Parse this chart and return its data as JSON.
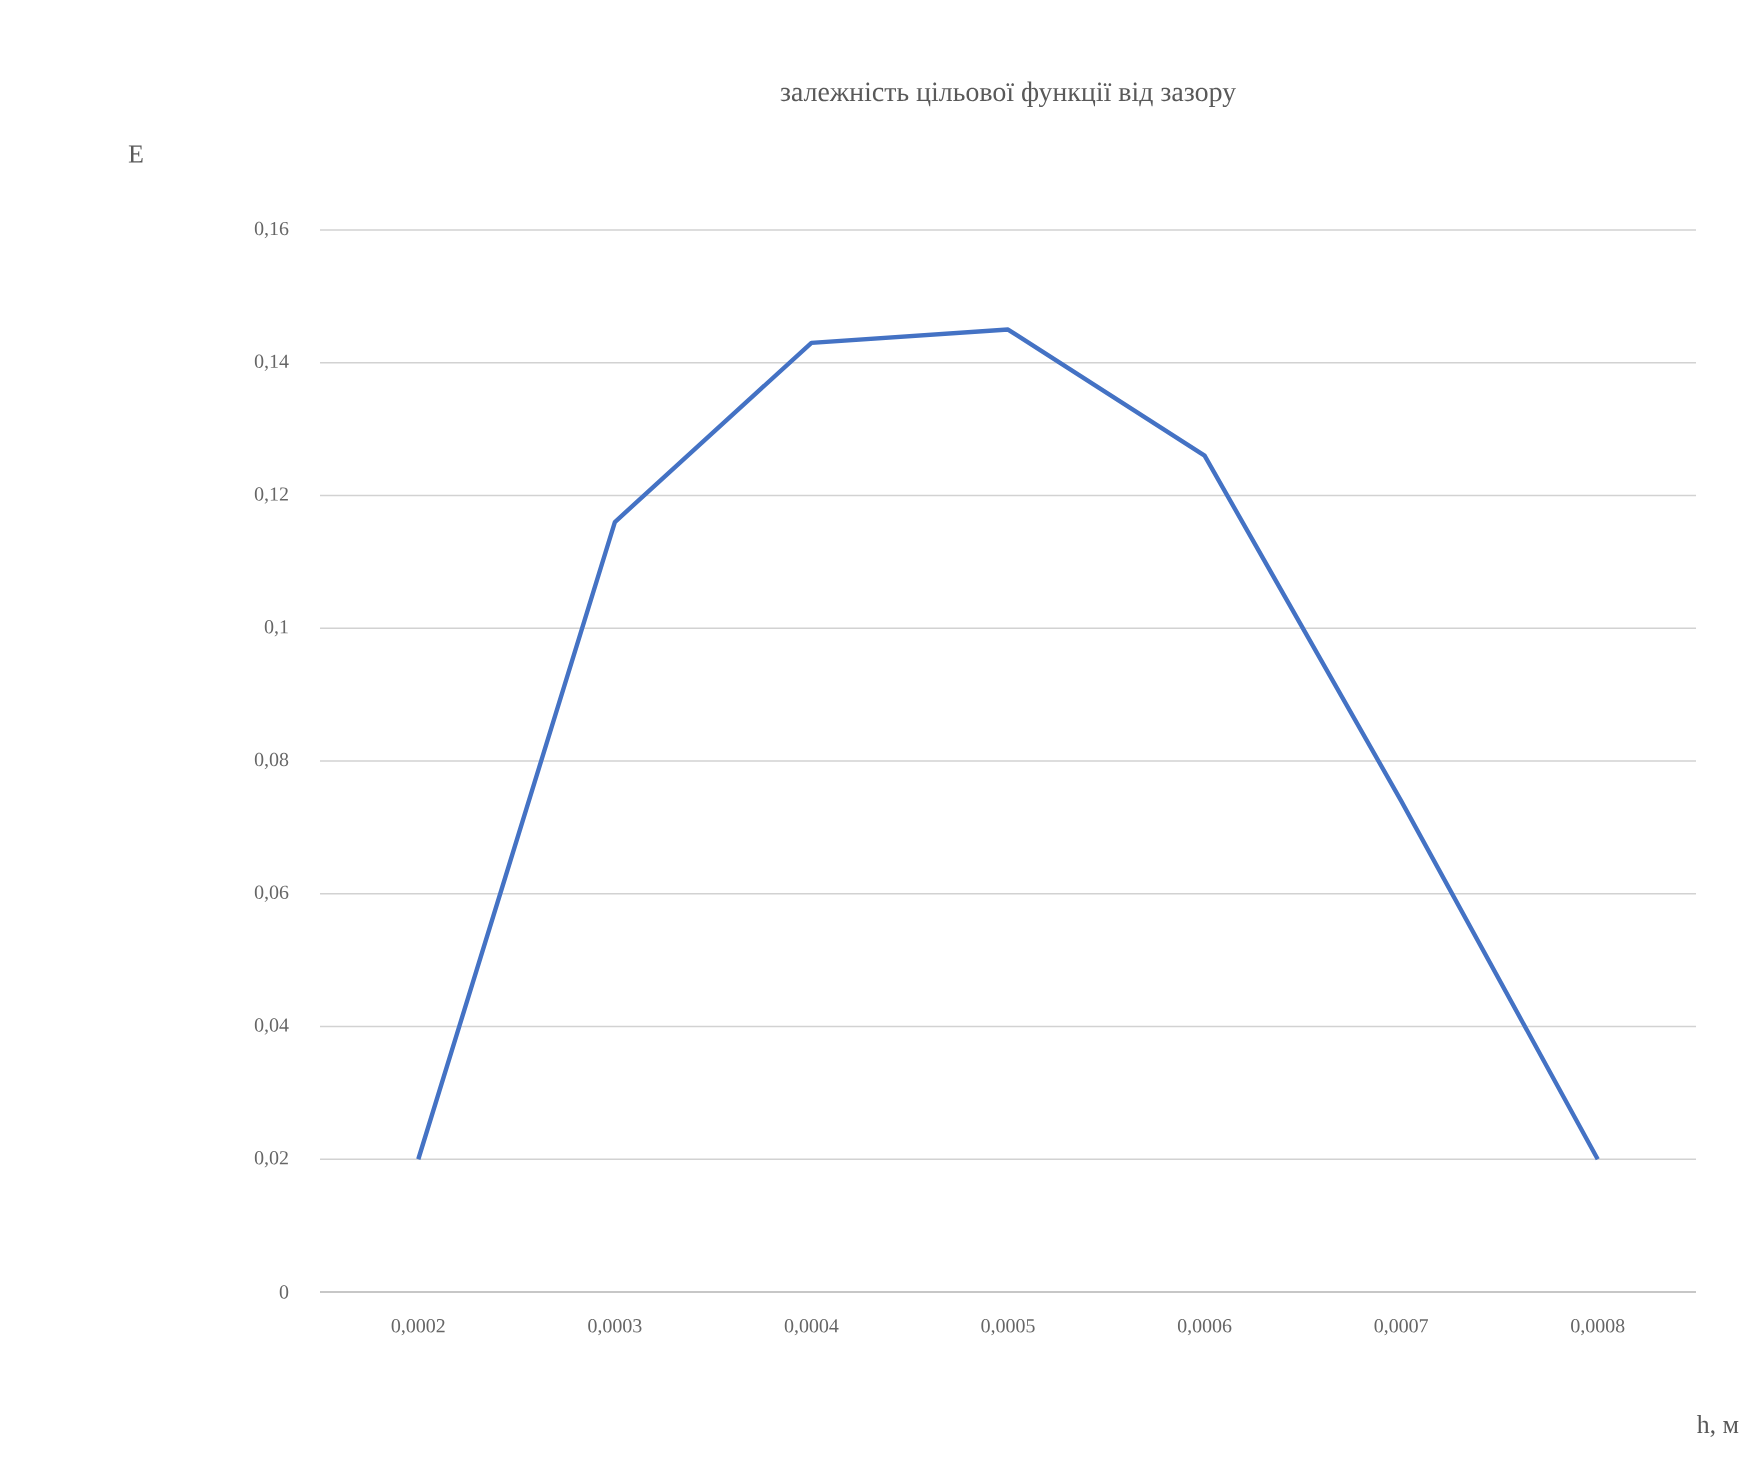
{
  "chart_data": {
    "type": "line",
    "title": "залежність цільової функції від зазору",
    "xlabel": "h, м",
    "ylabel": "E",
    "categories": [
      "0,0002",
      "0,0003",
      "0,0004",
      "0,0005",
      "0,0006",
      "0,0007",
      "0,0008"
    ],
    "series": [
      {
        "color": "#4472c4",
        "values": [
          0.02,
          0.116,
          0.143,
          0.145,
          0.126,
          0.074,
          0.02
        ]
      }
    ],
    "ylim": [
      0,
      0.16
    ],
    "yticks": [
      {
        "value": 0,
        "label": "0"
      },
      {
        "value": 0.02,
        "label": "0,02"
      },
      {
        "value": 0.04,
        "label": "0,04"
      },
      {
        "value": 0.06,
        "label": "0,06"
      },
      {
        "value": 0.08,
        "label": "0,08"
      },
      {
        "value": 0.1,
        "label": "0,1"
      },
      {
        "value": 0.12,
        "label": "0,12"
      },
      {
        "value": 0.14,
        "label": "0,14"
      },
      {
        "value": 0.16,
        "label": "0,16"
      }
    ],
    "grid": "y"
  }
}
